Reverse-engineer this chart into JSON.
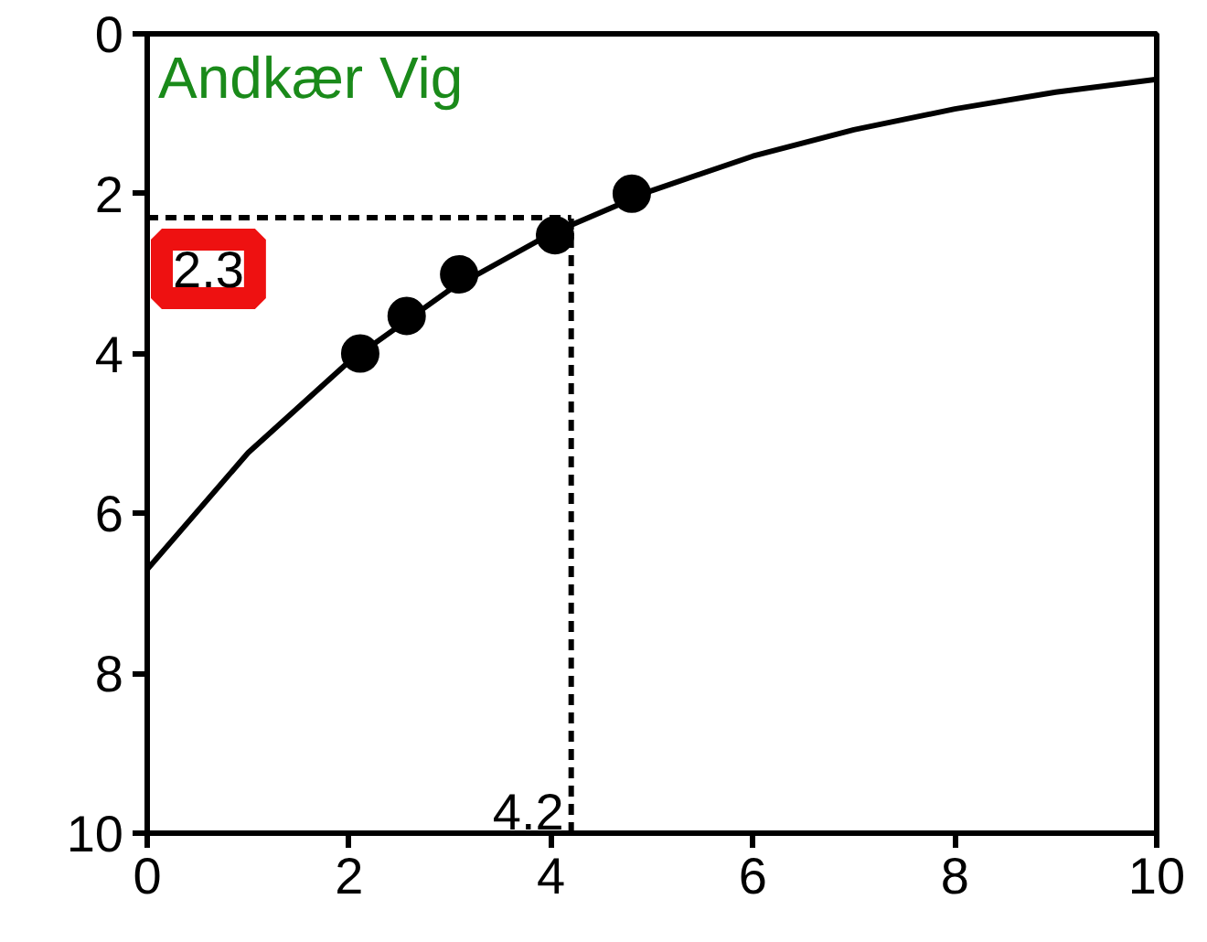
{
  "chart_data": {
    "type": "line",
    "title": "Andkær Vig",
    "series": [
      {
        "color": "#000000",
        "marker": "none",
        "x": [
          0,
          1,
          2,
          3,
          4,
          5,
          6,
          7,
          8,
          9,
          10
        ],
        "values": [
          6.7,
          5.24,
          4.1,
          3.2,
          2.5,
          1.96,
          1.53,
          1.2,
          0.94,
          0.73,
          0.57
        ]
      },
      {
        "type": "scatter",
        "color": "#000000",
        "marker": "circle",
        "x": [
          2.11,
          2.57,
          3.09,
          4.04,
          4.8
        ],
        "values": [
          4.0,
          3.53,
          3.01,
          2.52,
          2.0
        ]
      }
    ],
    "ref_lines": [
      {
        "axis": "y",
        "value": 2.3,
        "label": "2.3",
        "line_style": "dashed"
      },
      {
        "axis": "x",
        "value": 4.2,
        "label": "4.2",
        "line_style": "dashed"
      }
    ],
    "xlim": [
      0,
      10
    ],
    "ylim": [
      10,
      0
    ],
    "xticks": [
      0,
      2,
      4,
      6,
      8,
      10
    ],
    "yticks": [
      0,
      2,
      4,
      6,
      8,
      10
    ],
    "grid": false
  }
}
